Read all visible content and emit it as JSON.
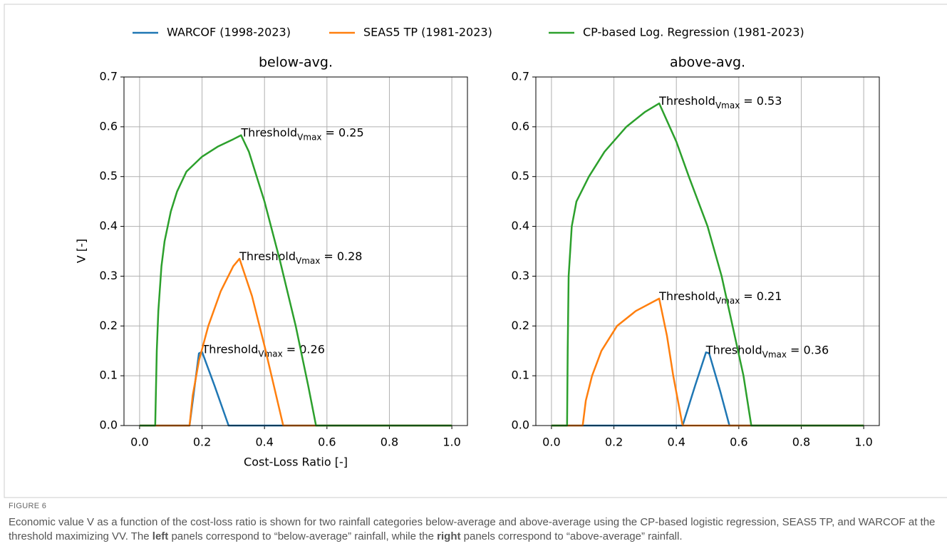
{
  "legend": [
    {
      "name": "WARCOF (1998-2023)",
      "color": "#1f77b4"
    },
    {
      "name": "SEAS5 TP (1981-2023)",
      "color": "#ff7f0e"
    },
    {
      "name": "CP-based Log. Regression (1981-2023)",
      "color": "#2ca02c"
    }
  ],
  "chart_data": [
    {
      "type": "line",
      "title": "below-avg.",
      "x_label": "Cost-Loss Ratio [-]",
      "y_label": "V [-]",
      "xlim": [
        -0.05,
        1.05
      ],
      "ylim": [
        0,
        0.7
      ],
      "xticks": [
        {
          "value": 0,
          "label": "0.0"
        },
        0.2,
        0.4,
        0.6,
        0.8,
        {
          "value": 1,
          "label": "1.0"
        }
      ],
      "yticks": [
        {
          "value": 0,
          "label": "0.0"
        },
        0.1,
        0.2,
        0.3,
        0.4,
        0.5,
        0.6,
        0.7
      ],
      "grid": true,
      "series": [
        {
          "color": "#1f77b4",
          "x": [
            0,
            0.16,
            0.19,
            0.2,
            0.24,
            0.285,
            1
          ],
          "values": [
            0,
            0,
            0.145,
            0.148,
            0.08,
            0,
            0
          ],
          "annotation": {
            "text": "Threshold",
            "subscript": "Vmax",
            "suffix": "= 0.26"
          }
        },
        {
          "color": "#ff7f0e",
          "x": [
            0,
            0.16,
            0.17,
            0.19,
            0.22,
            0.26,
            0.3,
            0.32,
            0.36,
            0.4,
            0.43,
            0.46,
            1
          ],
          "values": [
            0,
            0,
            0.06,
            0.13,
            0.2,
            0.27,
            0.32,
            0.335,
            0.26,
            0.16,
            0.08,
            0,
            0
          ],
          "annotation": {
            "text": "Threshold",
            "subscript": "Vmax",
            "suffix": "= 0.28"
          }
        },
        {
          "color": "#2ca02c",
          "x": [
            0,
            0.05,
            0.055,
            0.06,
            0.07,
            0.08,
            0.1,
            0.12,
            0.15,
            0.2,
            0.25,
            0.3,
            0.325,
            0.35,
            0.4,
            0.45,
            0.5,
            0.54,
            0.565,
            1
          ],
          "values": [
            0,
            0,
            0.15,
            0.23,
            0.32,
            0.37,
            0.43,
            0.47,
            0.51,
            0.54,
            0.56,
            0.575,
            0.583,
            0.55,
            0.45,
            0.33,
            0.2,
            0.08,
            0,
            0
          ],
          "annotation": {
            "text": "Threshold",
            "subscript": "Vmax",
            "suffix": "= 0.25"
          }
        }
      ]
    },
    {
      "type": "line",
      "title": "above-avg.",
      "xlim": [
        -0.05,
        1.05
      ],
      "ylim": [
        0,
        0.7
      ],
      "xticks": [
        {
          "value": 0,
          "label": "0.0"
        },
        0.2,
        0.4,
        0.6,
        0.8,
        {
          "value": 1,
          "label": "1.0"
        }
      ],
      "yticks": [
        {
          "value": 0,
          "label": "0.0"
        },
        0.1,
        0.2,
        0.3,
        0.4,
        0.5,
        0.6,
        0.7
      ],
      "grid": true,
      "series": [
        {
          "color": "#1f77b4",
          "x": [
            0,
            0.42,
            0.46,
            0.495,
            0.505,
            0.54,
            0.57,
            1
          ],
          "values": [
            0,
            0,
            0.08,
            0.147,
            0.145,
            0.07,
            0,
            0
          ],
          "annotation": {
            "text": "Threshold",
            "subscript": "Vmax",
            "suffix": "= 0.36"
          }
        },
        {
          "color": "#ff7f0e",
          "x": [
            0,
            0.1,
            0.11,
            0.13,
            0.16,
            0.21,
            0.27,
            0.345,
            0.37,
            0.39,
            0.42,
            1
          ],
          "values": [
            0,
            0,
            0.05,
            0.1,
            0.15,
            0.2,
            0.23,
            0.255,
            0.18,
            0.1,
            0,
            0
          ],
          "annotation": {
            "text": "Threshold",
            "subscript": "Vmax",
            "suffix": "= 0.21"
          }
        },
        {
          "color": "#2ca02c",
          "x": [
            0,
            0.05,
            0.052,
            0.055,
            0.065,
            0.08,
            0.12,
            0.17,
            0.24,
            0.3,
            0.345,
            0.4,
            0.44,
            0.5,
            0.545,
            0.58,
            0.615,
            0.64,
            1
          ],
          "values": [
            0,
            0,
            0.15,
            0.3,
            0.4,
            0.45,
            0.5,
            0.55,
            0.6,
            0.63,
            0.647,
            0.57,
            0.5,
            0.4,
            0.3,
            0.2,
            0.1,
            0,
            0
          ],
          "annotation": {
            "text": "Threshold",
            "subscript": "Vmax",
            "suffix": "= 0.53"
          }
        }
      ]
    }
  ],
  "caption": {
    "label": "FIGURE 6",
    "parts": [
      "Economic value V as a function of the cost-loss ratio is shown for two rainfall categories below-average and above-average using the CP-based logistic regression, SEAS5 TP, and WARCOF at the threshold maximizing VV. The ",
      "left",
      " panels correspond to “below-average” rainfall, while the ",
      "right",
      " panels correspond to “above-average” rainfall."
    ]
  }
}
